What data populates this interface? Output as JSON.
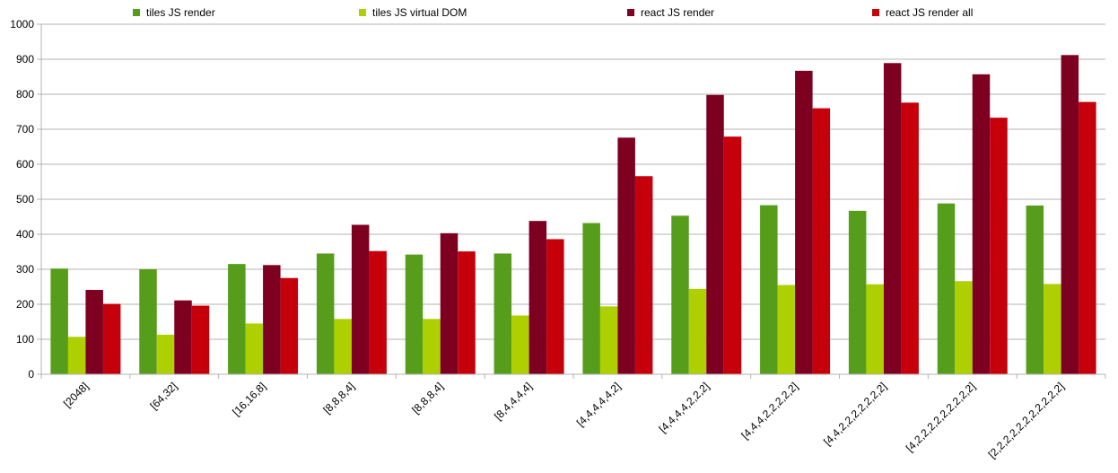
{
  "chart_data": {
    "type": "bar",
    "categories": [
      "[2048]",
      "[64,32]",
      "[16,16,8]",
      "[8,8,8,4]",
      "[8,8,8,4]",
      "[8,4,4,4,4]",
      "[4,4,4,4,4,2]",
      "[4,4,4,4,2,2,2]",
      "[4,4,4,2,2,2,2,2]",
      "[4,4,2,2,2,2,2,2,2]",
      "[4,2,2,2,2,2,2,2,2,2]",
      "[2,2,2,2,2,2,2,2,2,2,2]"
    ],
    "series": [
      {
        "name": "tiles JS render",
        "color": "#579d1c",
        "values": [
          302,
          300,
          315,
          345,
          342,
          345,
          432,
          453,
          483,
          467,
          488,
          482
        ]
      },
      {
        "name": "tiles JS virtual DOM",
        "color": "#aecf00",
        "values": [
          107,
          113,
          145,
          158,
          158,
          168,
          194,
          244,
          255,
          257,
          266,
          258
        ]
      },
      {
        "name": "react JS render",
        "color": "#7e0021",
        "values": [
          241,
          211,
          312,
          427,
          403,
          438,
          676,
          798,
          867,
          889,
          857,
          912
        ]
      },
      {
        "name": "react JS render all",
        "color": "#c5000b",
        "values": [
          201,
          196,
          275,
          352,
          351,
          386,
          566,
          679,
          760,
          776,
          733,
          778
        ]
      }
    ],
    "ylim": [
      0,
      1000
    ],
    "yticks": [
      0,
      100,
      200,
      300,
      400,
      500,
      600,
      700,
      800,
      900,
      1000
    ],
    "grid": true,
    "legend_position": "top"
  }
}
